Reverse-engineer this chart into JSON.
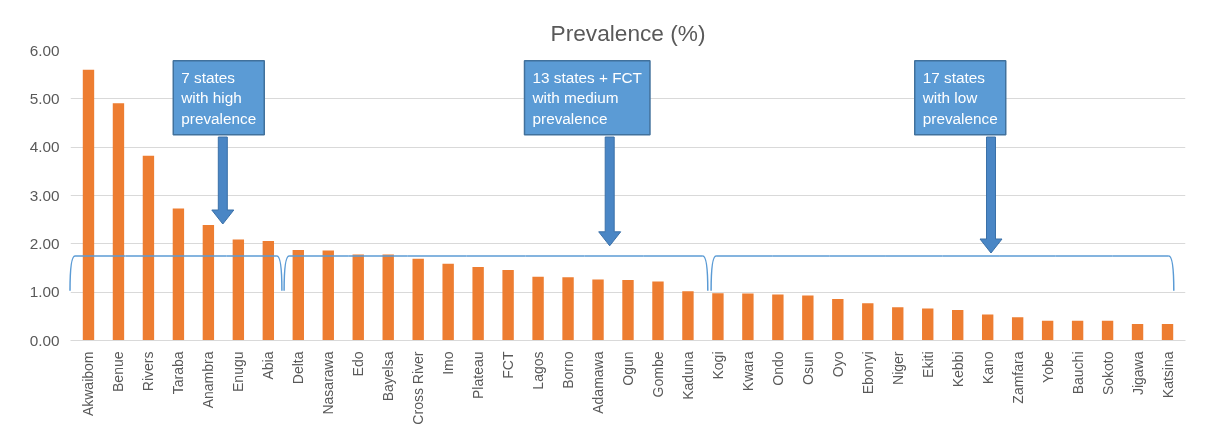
{
  "chart_data": {
    "type": "bar",
    "title": "Prevalence (%)",
    "categories": [
      "Akwaibom",
      "Benue",
      "Rivers",
      "Taraba",
      "Anambra",
      "Enugu",
      "Abia",
      "Delta",
      "Nasarawa",
      "Edo",
      "Bayelsa",
      "Cross River",
      "Imo",
      "Plateau",
      "FCT",
      "Lagos",
      "Borno",
      "Adamawa",
      "Ogun",
      "Gombe",
      "Kaduna",
      "Kogi",
      "Kwara",
      "Ondo",
      "Osun",
      "Oyo",
      "Ebonyi",
      "Niger",
      "Ekiti",
      "Kebbi",
      "Kano",
      "Zamfara",
      "Yobe",
      "Bauchi",
      "Sokoto",
      "Jigawa",
      "Katsina"
    ],
    "values": [
      5.6,
      4.91,
      3.82,
      2.73,
      2.39,
      2.09,
      2.06,
      1.87,
      1.86,
      1.78,
      1.78,
      1.69,
      1.59,
      1.52,
      1.46,
      1.32,
      1.31,
      1.26,
      1.25,
      1.22,
      1.02,
      0.98,
      0.97,
      0.95,
      0.93,
      0.86,
      0.77,
      0.69,
      0.66,
      0.63,
      0.54,
      0.48,
      0.41,
      0.41,
      0.41,
      0.34,
      0.34
    ],
    "color": "#ed7d31",
    "ylim": [
      0,
      6
    ],
    "yticks": [
      {
        "value": 0,
        "label": "0.00"
      },
      {
        "value": 1,
        "label": "1.00"
      },
      {
        "value": 2,
        "label": "2.00"
      },
      {
        "value": 3,
        "label": "3.00"
      },
      {
        "value": 4,
        "label": "4.00"
      },
      {
        "value": 5,
        "label": "5.00"
      },
      {
        "value": 6,
        "label": "6.00"
      }
    ],
    "grid": "y",
    "annotations": [
      "7 states\nwith high\nprevalence",
      "13 states + FCT\nwith medium\nprevalence",
      "17 states\nwith low\nprevalence"
    ]
  }
}
